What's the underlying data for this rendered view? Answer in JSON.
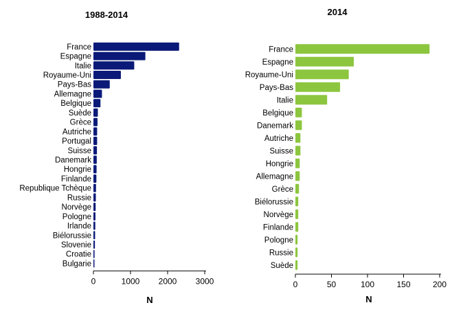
{
  "colors": {
    "left_bar": "#0b1a78",
    "right_bar": "#8cc63f",
    "axis": "#000000"
  },
  "chart_data": [
    {
      "type": "bar",
      "orientation": "horizontal",
      "title": "1988-2014",
      "xlabel": "N",
      "xlim": [
        0,
        3000
      ],
      "xticks": [
        0,
        1000,
        2000,
        3000
      ],
      "categories": [
        "France",
        "Espagne",
        "Italie",
        "Royaume-Uni",
        "Pays-Bas",
        "Allemagne",
        "Belgique",
        "Suède",
        "Grèce",
        "Autriche",
        "Portugal",
        "Suisse",
        "Danemark",
        "Hongrie",
        "Finlande",
        "Republique Tchèque",
        "Russie",
        "Norvège",
        "Pologne",
        "Irlande",
        "Biélorussie",
        "Slovenie",
        "Croatie",
        "Bulgarie"
      ],
      "values": [
        2310,
        1400,
        1100,
        740,
        440,
        230,
        190,
        120,
        110,
        100,
        100,
        95,
        90,
        85,
        80,
        70,
        65,
        60,
        55,
        50,
        45,
        40,
        30,
        25
      ]
    },
    {
      "type": "bar",
      "orientation": "horizontal",
      "title": "2014",
      "xlabel": "N",
      "xlim": [
        0,
        200
      ],
      "xticks": [
        0,
        50,
        100,
        150,
        200
      ],
      "categories": [
        "France",
        "Espagne",
        "Royaume-Uni",
        "Pays-Bas",
        "Italie",
        "Belgique",
        "Danemark",
        "Autriche",
        "Suisse",
        "Hongrie",
        "Allemagne",
        "Grèce",
        "Biélorussie",
        "Norvège",
        "Finlande",
        "Pologne",
        "Russie",
        "Suède"
      ],
      "values": [
        186,
        81,
        74,
        62,
        44,
        9,
        9,
        7,
        7,
        6,
        6,
        5,
        4,
        4,
        4,
        3,
        3,
        3
      ]
    }
  ]
}
